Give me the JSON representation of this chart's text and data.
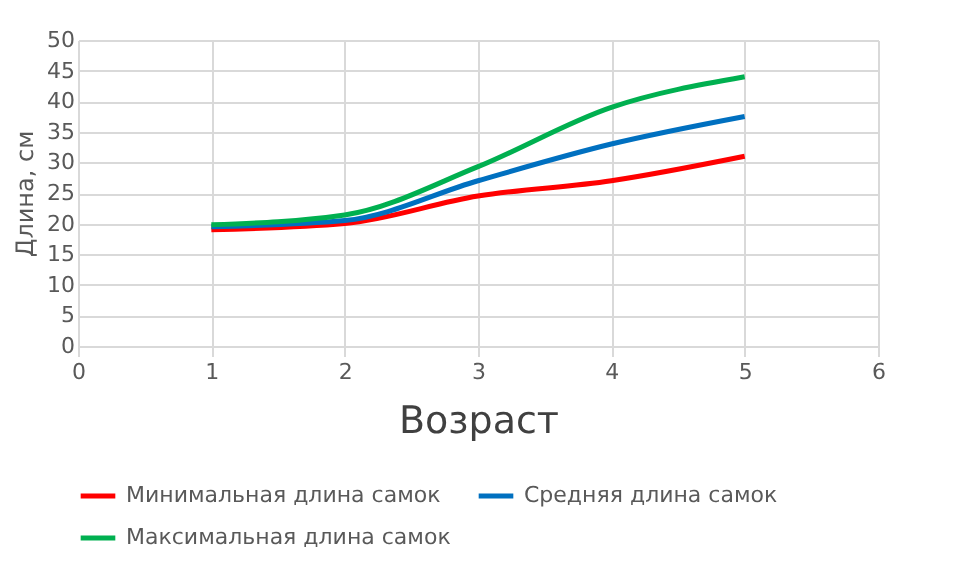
{
  "chart_data": {
    "type": "line",
    "xlabel": "Возраст",
    "ylabel": "Длина, см",
    "x": [
      1,
      2,
      3,
      4,
      5
    ],
    "series": [
      {
        "name": "Минимальная длина самок",
        "color": "#ff0000",
        "values": [
          19,
          20,
          24.5,
          27,
          31
        ]
      },
      {
        "name": "Средняя длина самок",
        "color": "#0070c0",
        "values": [
          19.5,
          20.5,
          27,
          33,
          37.5
        ]
      },
      {
        "name": "Максимальная длина самок",
        "color": "#00b050",
        "values": [
          19.8,
          21.4,
          29.3,
          39,
          44
        ]
      }
    ],
    "xlim": [
      0,
      6
    ],
    "xticks": [
      0,
      1,
      2,
      3,
      4,
      5,
      6
    ],
    "ylim": [
      0,
      50
    ],
    "yticks": [
      0,
      5,
      10,
      15,
      20,
      25,
      30,
      35,
      40,
      45,
      50
    ],
    "grid": true,
    "legend": "bottom",
    "marker": "none",
    "line_style": "solid"
  }
}
